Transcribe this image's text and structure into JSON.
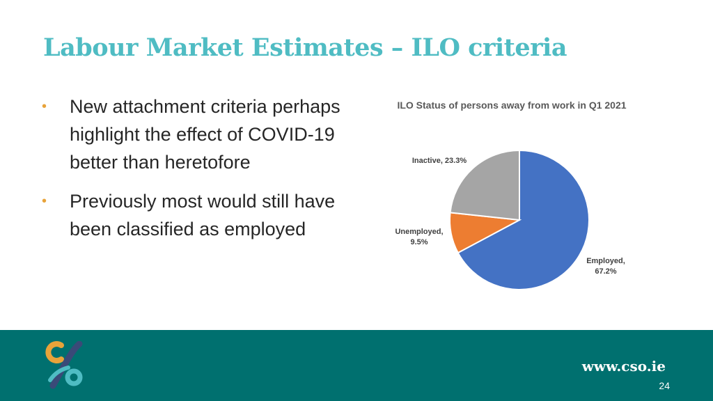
{
  "slide": {
    "title": "Labour Market Estimates – ILO criteria",
    "bullets": [
      "New attachment criteria perhaps highlight the effect of COVID-19 better than heretofore",
      "Previously most would still have been classified as employed"
    ]
  },
  "chart_data": {
    "type": "pie",
    "title": "ILO Status of persons away from work in Q1 2021",
    "slices": [
      {
        "label": "Employed,",
        "value_label": "67.2%",
        "value": 67.2,
        "color": "#4472c4"
      },
      {
        "label": "Unemployed,",
        "value_label": "9.5%",
        "value": 9.5,
        "color": "#ed7d31"
      },
      {
        "label": "Inactive, 23.3%",
        "value_label": "",
        "value": 23.3,
        "color": "#a5a5a5"
      }
    ]
  },
  "footer": {
    "url": "www.cso.ie",
    "page_number": "24",
    "colors": {
      "bar": "#00706f",
      "logo_orange": "#e8a33a",
      "logo_teal": "#4fbcc3",
      "logo_navy": "#3a4a78"
    }
  }
}
